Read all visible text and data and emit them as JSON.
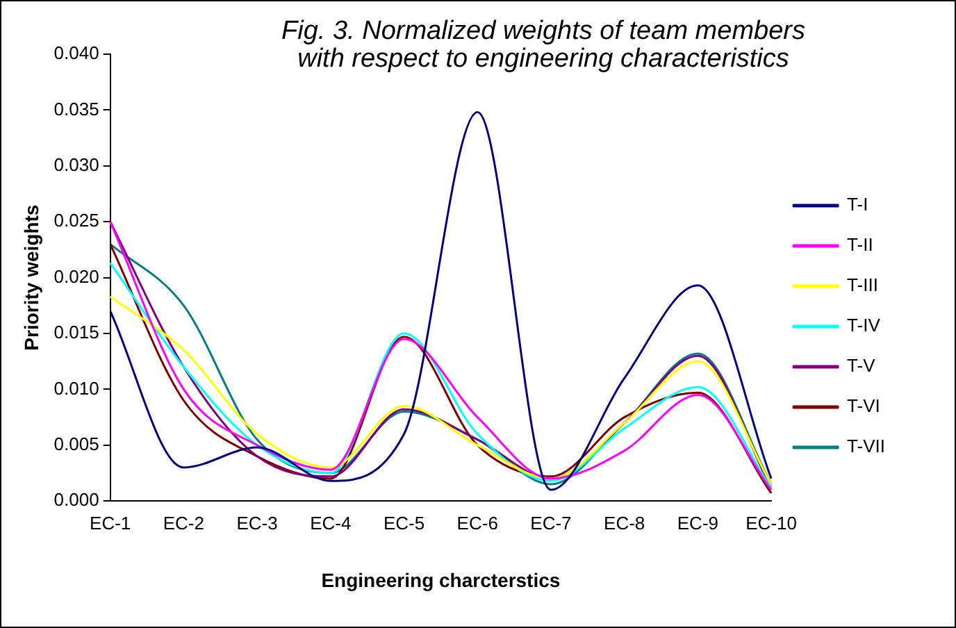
{
  "chart_data": {
    "type": "line",
    "title": "Fig. 3. Normalized weights of team members with respect to engineering characteristics",
    "xlabel": "Engineering charcterstics",
    "ylabel": "Priority weights",
    "categories": [
      "EC-1",
      "EC-2",
      "EC-3",
      "EC-4",
      "EC-5",
      "EC-6",
      "EC-7",
      "EC-8",
      "EC-9",
      "EC-10"
    ],
    "ylim": [
      0,
      0.04
    ],
    "yticks": [
      {
        "value": 0,
        "label": "0.000"
      },
      {
        "value": 0.005,
        "label": "0.005"
      },
      {
        "value": 0.01,
        "label": "0.010"
      },
      {
        "value": 0.015,
        "label": "0.015"
      },
      {
        "value": 0.02,
        "label": "0.020"
      },
      {
        "value": 0.025,
        "label": "0.025"
      },
      {
        "value": 0.03,
        "label": "0.030"
      },
      {
        "value": 0.035,
        "label": "0.035"
      },
      {
        "value": 0.04,
        "label": "0.040"
      }
    ],
    "series": [
      {
        "name": "T-I",
        "color": "#000080",
        "values": [
          0.017,
          0.003,
          0.0048,
          0.0018,
          0.006,
          0.0348,
          0.001,
          0.011,
          0.0193,
          0.002
        ]
      },
      {
        "name": "T-II",
        "color": "#ff00ff",
        "values": [
          0.025,
          0.01,
          0.005,
          0.0028,
          0.0145,
          0.0075,
          0.002,
          0.0045,
          0.0095,
          0.001
        ]
      },
      {
        "name": "T-III",
        "color": "#ffff00",
        "values": [
          0.0183,
          0.0135,
          0.006,
          0.003,
          0.0085,
          0.005,
          0.002,
          0.007,
          0.0125,
          0.0015
        ]
      },
      {
        "name": "T-IV",
        "color": "#00ffff",
        "values": [
          0.0213,
          0.012,
          0.005,
          0.0025,
          0.015,
          0.006,
          0.0018,
          0.0065,
          0.0102,
          0.0012
        ]
      },
      {
        "name": "T-V",
        "color": "#800080",
        "values": [
          0.025,
          0.012,
          0.004,
          0.0022,
          0.0082,
          0.0055,
          0.002,
          0.007,
          0.013,
          0.0012
        ]
      },
      {
        "name": "T-VI",
        "color": "#800000",
        "values": [
          0.023,
          0.009,
          0.004,
          0.002,
          0.0147,
          0.005,
          0.0022,
          0.0075,
          0.0097,
          0.0007
        ]
      },
      {
        "name": "T-VII",
        "color": "#008080",
        "values": [
          0.023,
          0.0175,
          0.0055,
          0.0025,
          0.008,
          0.0055,
          0.0015,
          0.007,
          0.0132,
          0.0015
        ]
      }
    ],
    "grid": false,
    "legend": "right",
    "marker": "none",
    "line_style": "solid"
  }
}
